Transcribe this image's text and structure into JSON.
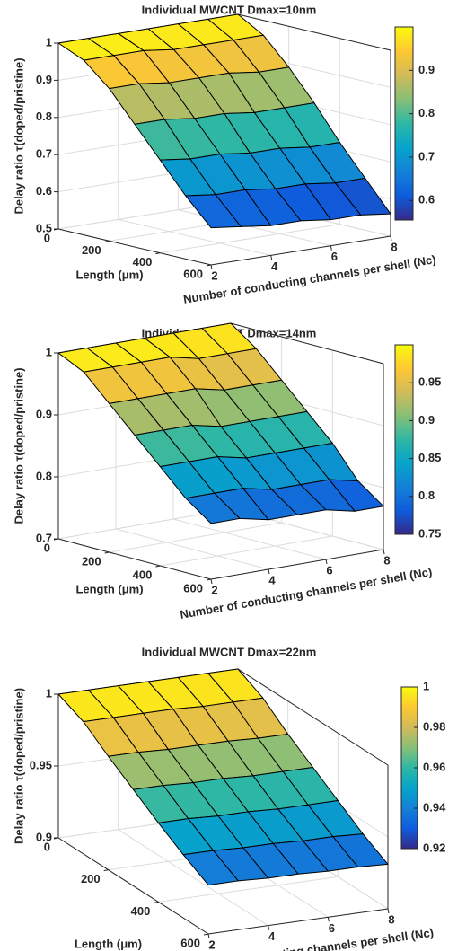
{
  "chart_data": [
    {
      "type": "surface",
      "title": "Individual MWCNT Dmax=10nm",
      "xlabel": "Length (μm)",
      "ylabel": "Number of conducting channels per shell (Nc)",
      "zlabel": "Delay ratio τ(doped/pristine)",
      "x": [
        0,
        100,
        200,
        300,
        400,
        500,
        600
      ],
      "y": [
        2,
        3,
        4,
        5,
        6,
        7,
        8
      ],
      "z": [
        [
          1,
          1,
          1,
          1,
          1,
          1,
          1
        ],
        [
          0.97,
          0.97,
          0.97,
          0.96,
          0.96,
          0.96,
          0.96
        ],
        [
          0.91,
          0.91,
          0.9,
          0.9,
          0.9,
          0.89,
          0.89
        ],
        [
          0.83,
          0.83,
          0.82,
          0.82,
          0.81,
          0.81,
          0.81
        ],
        [
          0.75,
          0.74,
          0.74,
          0.73,
          0.73,
          0.72,
          0.72
        ],
        [
          0.67,
          0.66,
          0.66,
          0.65,
          0.65,
          0.64,
          0.64
        ],
        [
          0.6,
          0.59,
          0.58,
          0.58,
          0.57,
          0.57,
          0.56
        ]
      ],
      "xlim": [
        0,
        600
      ],
      "xticks": [
        0,
        200,
        400,
        600
      ],
      "ylim": [
        2,
        8
      ],
      "yticks": [
        2,
        4,
        6,
        8
      ],
      "zlim": [
        0.5,
        1
      ],
      "zticks": [
        0.5,
        0.6,
        0.7,
        0.8,
        0.9,
        1
      ],
      "clim": [
        0.555,
        1
      ],
      "cticks": [
        0.6,
        0.7,
        0.8,
        0.9
      ],
      "grid": true,
      "colormap": [
        "#352a87",
        "#0f5cdd",
        "#1481d6",
        "#06a4ca",
        "#2eb7a4",
        "#87bf77",
        "#d1bb59",
        "#fec832",
        "#f9fb0e"
      ]
    },
    {
      "type": "surface",
      "title": "Individual MWCNT Dmax=14nm",
      "xlabel": "Length (μm)",
      "ylabel": "Number of conducting channels per shell (Nc)",
      "zlabel": "Delay ratio τ(doped/pristine)",
      "x": [
        0,
        100,
        200,
        300,
        400,
        500,
        600
      ],
      "y": [
        2,
        3,
        4,
        5,
        6,
        7,
        8
      ],
      "z": [
        [
          1,
          1,
          1,
          1,
          1,
          1,
          1
        ],
        [
          0.98,
          0.98,
          0.98,
          0.98,
          0.97,
          0.97,
          0.97
        ],
        [
          0.94,
          0.94,
          0.94,
          0.94,
          0.93,
          0.93,
          0.93
        ],
        [
          0.9,
          0.9,
          0.9,
          0.89,
          0.89,
          0.89,
          0.89
        ],
        [
          0.86,
          0.86,
          0.86,
          0.85,
          0.85,
          0.85,
          0.85
        ],
        [
          0.82,
          0.82,
          0.82,
          0.81,
          0.81,
          0.81,
          0.8
        ],
        [
          0.79,
          0.79,
          0.78,
          0.78,
          0.78,
          0.77,
          0.77
        ]
      ],
      "xlim": [
        0,
        600
      ],
      "xticks": [
        0,
        200,
        400,
        600
      ],
      "ylim": [
        2,
        8
      ],
      "yticks": [
        2,
        4,
        6,
        8
      ],
      "zlim": [
        0.7,
        1
      ],
      "zticks": [
        0.7,
        0.8,
        0.9,
        1
      ],
      "clim": [
        0.75,
        1
      ],
      "cticks": [
        0.75,
        0.8,
        0.85,
        0.9,
        0.95
      ],
      "grid": true,
      "colormap": [
        "#352a87",
        "#0f5cdd",
        "#1481d6",
        "#06a4ca",
        "#2eb7a4",
        "#87bf77",
        "#d1bb59",
        "#fec832",
        "#f9fb0e"
      ]
    },
    {
      "type": "surface",
      "title": "Individual MWCNT Dmax=22nm",
      "xlabel": "Length (μm)",
      "ylabel": "Number of conducting channels per shell (Nc)",
      "zlabel": "Delay ratio τ(doped/pristine)",
      "x": [
        0,
        100,
        200,
        300,
        400,
        500,
        600
      ],
      "y": [
        2,
        3,
        4,
        5,
        6,
        7,
        8
      ],
      "z": [
        [
          1,
          1,
          1,
          1,
          1,
          1,
          1
        ],
        [
          0.992,
          0.992,
          0.992,
          0.992,
          0.991,
          0.991,
          0.991
        ],
        [
          0.979,
          0.979,
          0.978,
          0.978,
          0.978,
          0.977,
          0.977
        ],
        [
          0.967,
          0.967,
          0.966,
          0.966,
          0.965,
          0.965,
          0.965
        ],
        [
          0.955,
          0.955,
          0.954,
          0.954,
          0.953,
          0.953,
          0.953
        ],
        [
          0.944,
          0.944,
          0.943,
          0.943,
          0.942,
          0.942,
          0.941
        ],
        [
          0.934,
          0.934,
          0.933,
          0.933,
          0.932,
          0.932,
          0.931
        ]
      ],
      "xlim": [
        0,
        600
      ],
      "xticks": [
        0,
        200,
        400,
        600
      ],
      "ylim": [
        2,
        8
      ],
      "yticks": [
        2,
        4,
        6,
        8
      ],
      "zlim": [
        0.9,
        1
      ],
      "zticks": [
        0.9,
        0.95,
        1
      ],
      "clim": [
        0.92,
        1
      ],
      "cticks": [
        0.92,
        0.94,
        0.96,
        0.98,
        1
      ],
      "grid": true,
      "colormap": [
        "#352a87",
        "#0f5cdd",
        "#1481d6",
        "#06a4ca",
        "#2eb7a4",
        "#87bf77",
        "#d1bb59",
        "#fec832",
        "#f9fb0e"
      ]
    }
  ]
}
